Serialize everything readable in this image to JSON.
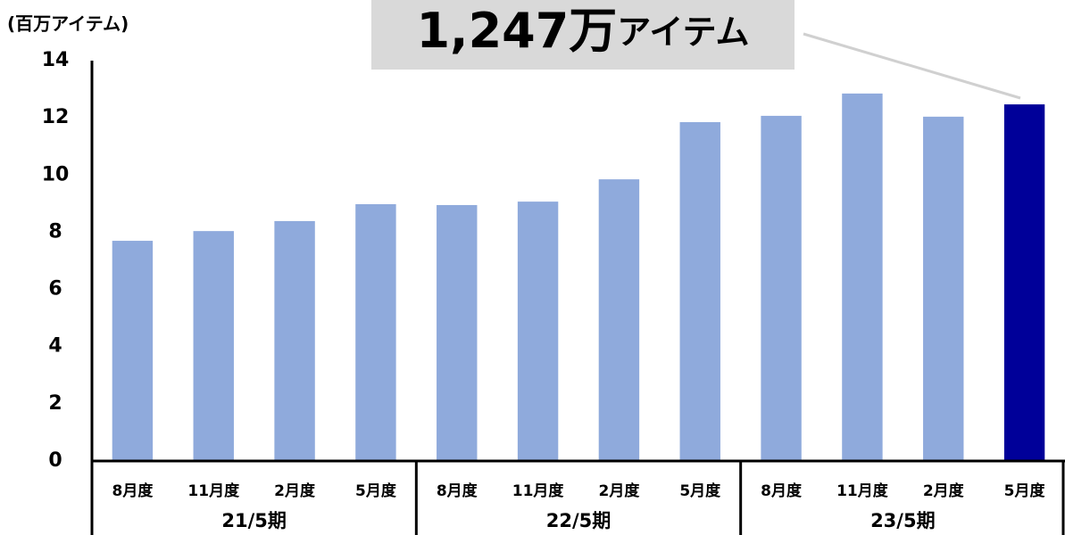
{
  "chart_data": {
    "type": "bar",
    "y_axis_label": "(百万アイテム)",
    "annotation": {
      "number": "1,247万",
      "unit": "アイテム"
    },
    "categories": [
      "8月度",
      "11月度",
      "2月度",
      "5月度",
      "8月度",
      "11月度",
      "2月度",
      "5月度",
      "8月度",
      "11月度",
      "2月度",
      "5月度"
    ],
    "groups": [
      "21/5期",
      "22/5期",
      "23/5期"
    ],
    "values": [
      7.7,
      8.04,
      8.39,
      8.98,
      8.95,
      9.07,
      9.85,
      11.85,
      12.07,
      12.85,
      12.04,
      12.47
    ],
    "colors": [
      "#8faadc",
      "#8faadc",
      "#8faadc",
      "#8faadc",
      "#8faadc",
      "#8faadc",
      "#8faadc",
      "#8faadc",
      "#8faadc",
      "#8faadc",
      "#8faadc",
      "#000099"
    ],
    "ylim": [
      0,
      14
    ],
    "yticks": [
      0,
      2,
      4,
      6,
      8,
      10,
      12,
      14
    ],
    "grid": false
  }
}
